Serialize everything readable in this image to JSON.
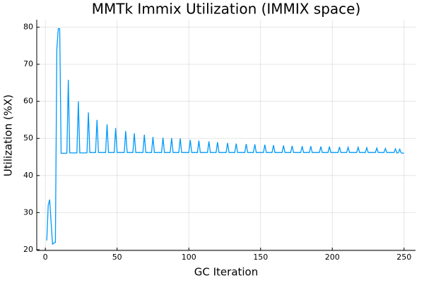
{
  "chart_data": {
    "type": "line",
    "title": "MMTk Immix Utilization (IMMIX space)",
    "x_label": "GC Iteration",
    "y_label": "Utilization (%X)",
    "xlim": [
      -6,
      258
    ],
    "ylim": [
      19.8,
      82
    ],
    "xticks": [
      0,
      50,
      100,
      150,
      200,
      250
    ],
    "yticks": [
      20,
      30,
      40,
      50,
      60,
      70,
      80
    ],
    "grid": true,
    "x": [
      1,
      2,
      3,
      5,
      6,
      7,
      8,
      9,
      10,
      11,
      15,
      16,
      17,
      22,
      23,
      24,
      29,
      30,
      31,
      35,
      36,
      37,
      42,
      43,
      44,
      48,
      49,
      50,
      55,
      56,
      57,
      61,
      62,
      63,
      68,
      69,
      70,
      74,
      75,
      76,
      81,
      82,
      83,
      87,
      88,
      89,
      93,
      94,
      95,
      100,
      101,
      102,
      106,
      107,
      108,
      113,
      114,
      115,
      119,
      120,
      121,
      126,
      127,
      128,
      132,
      133,
      134,
      139,
      140,
      141,
      145,
      146,
      147,
      152,
      153,
      154,
      158,
      159,
      160,
      165,
      166,
      167,
      171,
      172,
      173,
      178,
      179,
      180,
      184,
      185,
      186,
      191,
      192,
      193,
      197,
      198,
      199,
      204,
      205,
      206,
      210,
      211,
      212,
      217,
      218,
      219,
      223,
      224,
      225,
      230,
      231,
      232,
      236,
      237,
      238,
      243,
      244,
      245,
      246,
      247,
      248,
      250
    ],
    "series": [
      {
        "name": "utilization",
        "color": "#009af9",
        "values": [
          22.5,
          32,
          33.5,
          21.5,
          21.8,
          22,
          74,
          79.6,
          79.6,
          46,
          46,
          65.8,
          46.1,
          46.1,
          60,
          46.1,
          46.1,
          57,
          46.2,
          46.2,
          55,
          46.2,
          46.2,
          53.8,
          46.2,
          46.2,
          52.8,
          46.2,
          46.2,
          52,
          46.2,
          46.2,
          51.4,
          46.2,
          46.2,
          51,
          46.2,
          46.2,
          50.4,
          46.2,
          46.2,
          50.2,
          46.2,
          46.2,
          50.1,
          46.2,
          46.2,
          50,
          46.2,
          46.2,
          49.6,
          46.2,
          46.2,
          49.4,
          46.2,
          46.2,
          49.2,
          46.2,
          46.2,
          49,
          46.2,
          46.2,
          48.8,
          46.2,
          46.2,
          48.6,
          46.2,
          46.2,
          48.5,
          46.2,
          46.2,
          48.4,
          46.2,
          46.2,
          48.3,
          46.2,
          46.2,
          48.2,
          46.2,
          46.2,
          48.1,
          46.2,
          46.2,
          48,
          46.2,
          46.2,
          47.9,
          46.2,
          46.2,
          47.9,
          46.2,
          46.2,
          47.8,
          46.2,
          46.2,
          47.8,
          46.2,
          46.2,
          47.7,
          46.2,
          46.2,
          47.6,
          46.2,
          46.2,
          47.6,
          46.2,
          46.2,
          47.5,
          46.2,
          46.2,
          47.4,
          46.2,
          46.2,
          47.3,
          46.2,
          46.2,
          47.2,
          46.1,
          46.1,
          47.1,
          46.1,
          46
        ]
      }
    ]
  }
}
